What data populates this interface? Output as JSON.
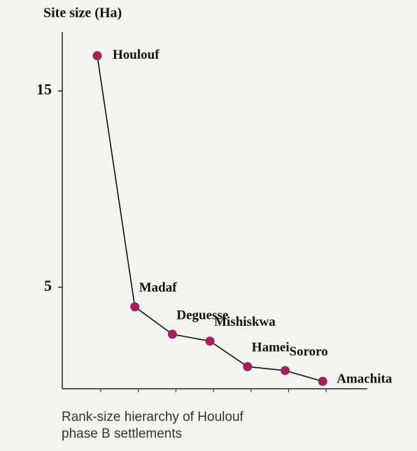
{
  "chart_data": {
    "type": "line",
    "title": "Site size (Ha)",
    "caption": [
      "Rank-size hierarchy of Houlouf",
      "phase B settlements"
    ],
    "categories": [
      "Houlouf",
      "Madaf",
      "Deguesse",
      "Mishiskwa",
      "Hamei",
      "Sororo",
      "Amachita"
    ],
    "values": [
      16.8,
      4.0,
      2.6,
      2.25,
      0.95,
      0.75,
      0.2
    ],
    "color": "#a3205a",
    "ylim": [
      0,
      18
    ],
    "yticks": [
      5,
      15
    ],
    "grid": false
  }
}
